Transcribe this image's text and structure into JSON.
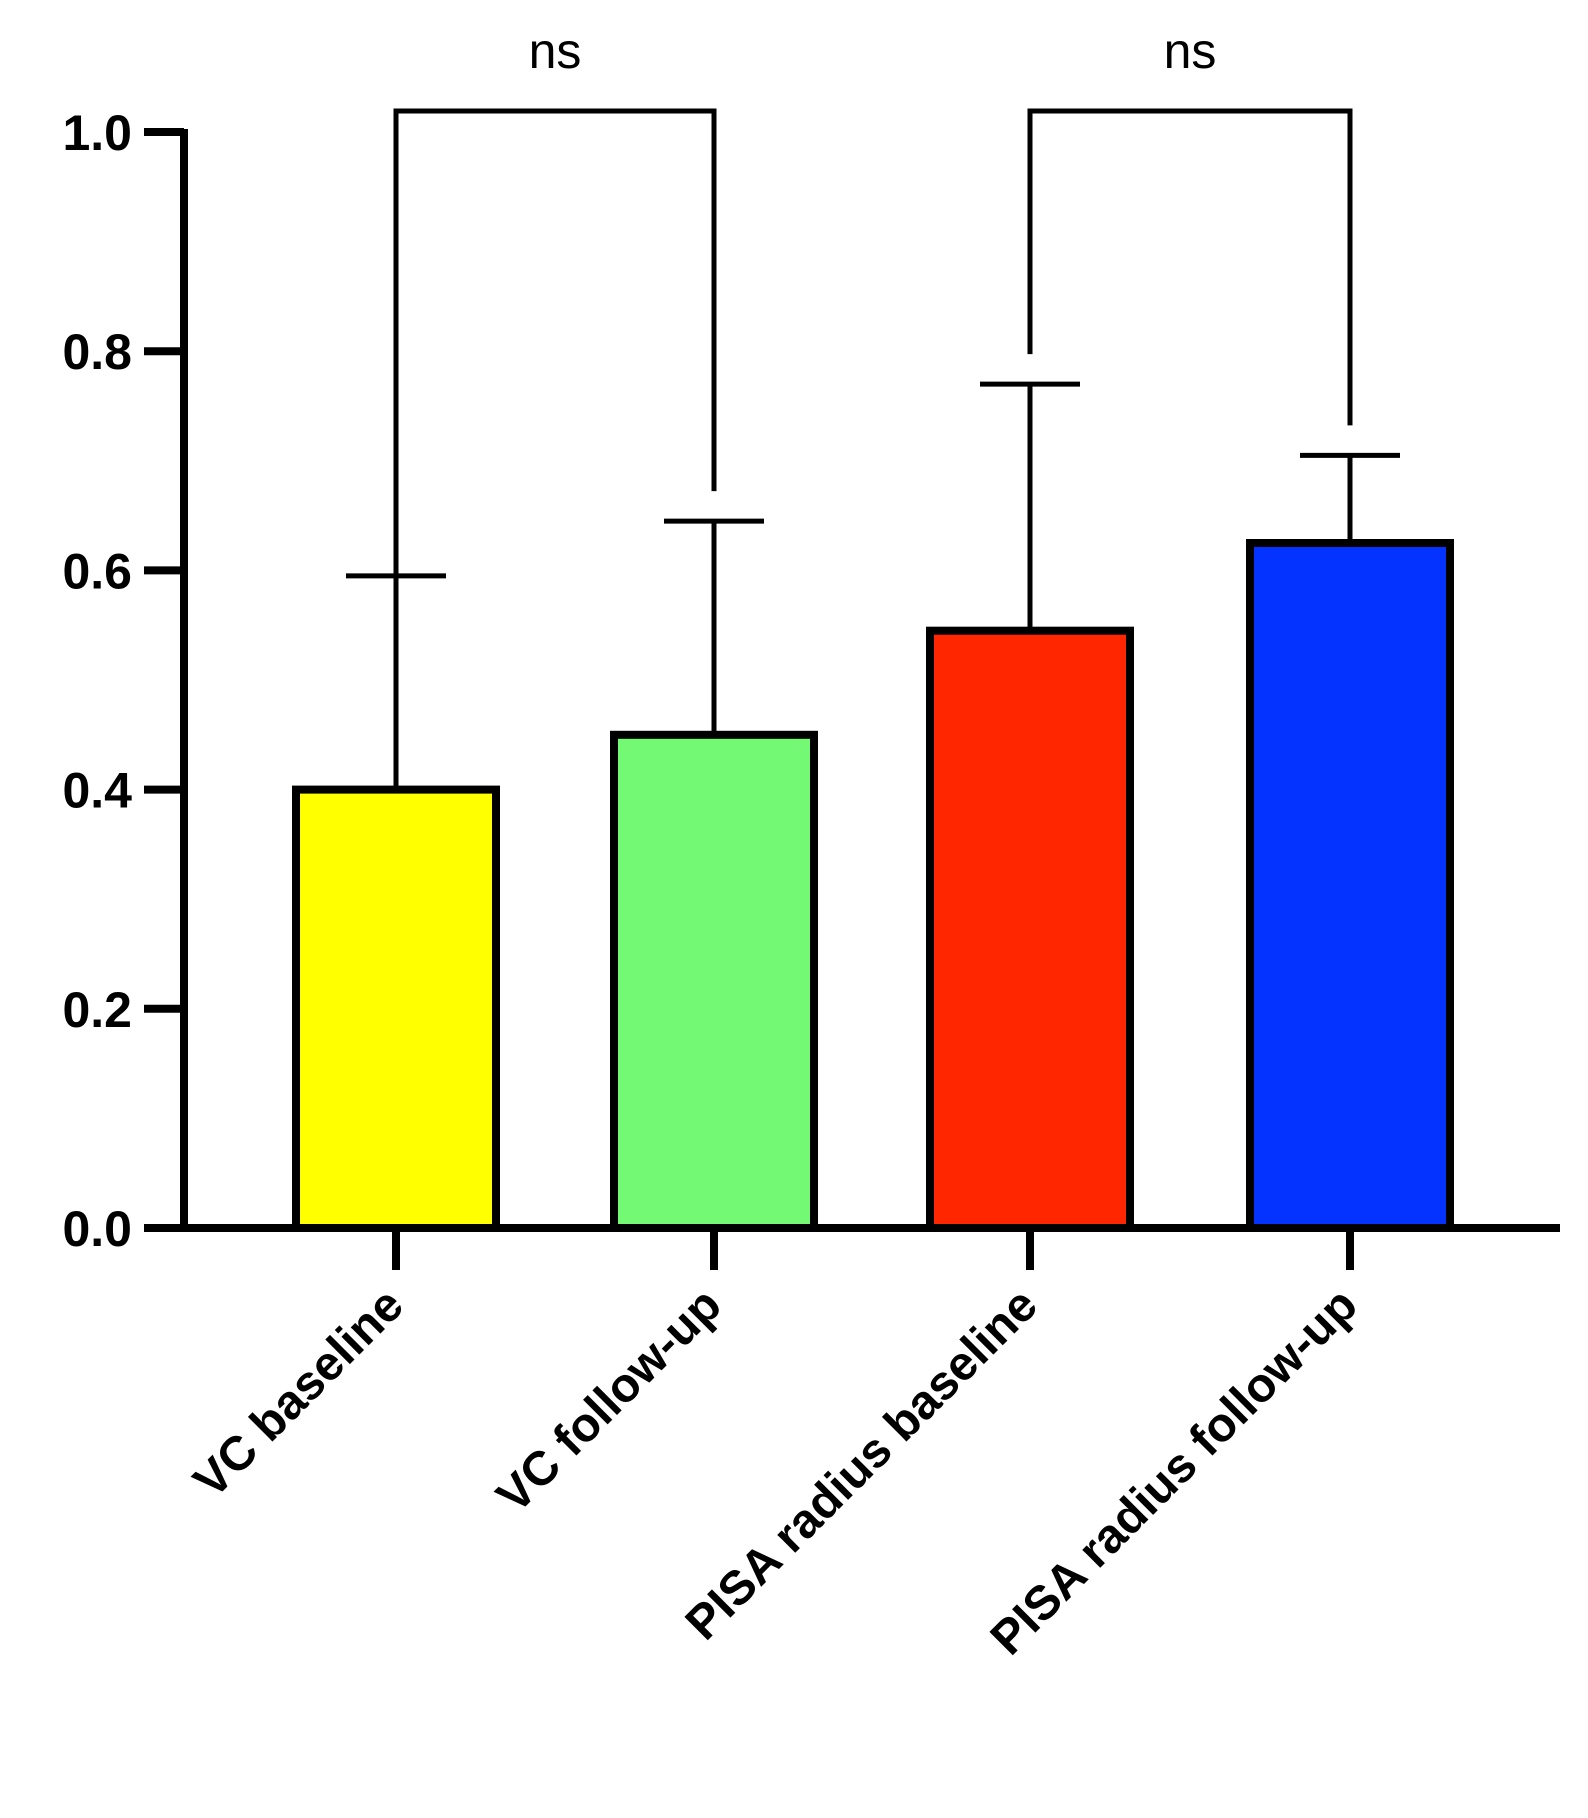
{
  "chart_data": {
    "type": "bar",
    "title": "",
    "xlabel": "",
    "ylabel": "",
    "ylim": [
      0,
      1.0
    ],
    "yticks": [
      "0.0",
      "0.2",
      "0.4",
      "0.6",
      "0.8",
      "1.0"
    ],
    "categories": [
      "VC baseline",
      "VC follow-up",
      "PISA radius baseline",
      "PISA radius follow-up"
    ],
    "values": [
      0.4,
      0.45,
      0.545,
      0.625
    ],
    "error_upper": [
      0.195,
      0.195,
      0.225,
      0.08
    ],
    "colors": [
      "#ffff00",
      "#74f974",
      "#ff2600",
      "#0433ff"
    ],
    "grid": false,
    "legend": "none",
    "annotations": [
      {
        "label": "ns",
        "from": 0,
        "to": 1
      },
      {
        "label": "ns",
        "from": 2,
        "to": 3
      }
    ]
  }
}
